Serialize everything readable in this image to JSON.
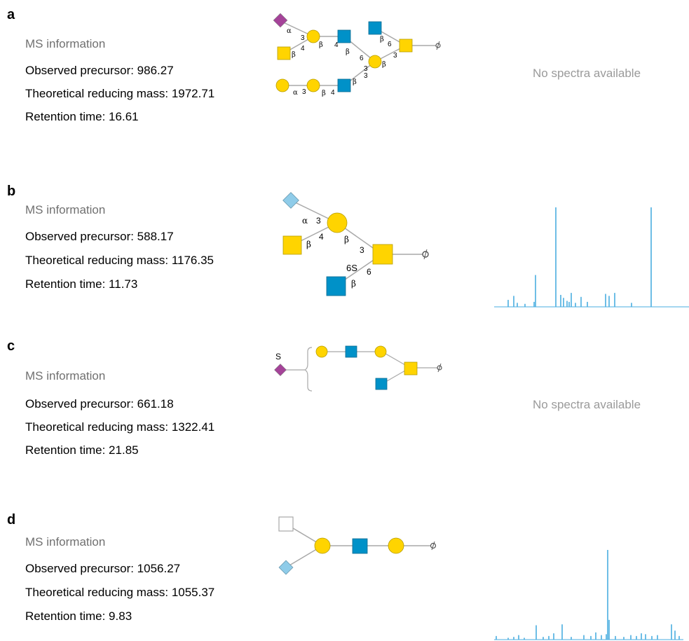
{
  "panels": [
    {
      "letter": "a",
      "ms_header": "MS information",
      "observed_precursor": "Observed precursor: 986.27",
      "theoretical_mass": "Theoretical reducing mass: 1972.71",
      "retention_time": "Retention time: 16.61",
      "spectrum_status": "No spectra available"
    },
    {
      "letter": "b",
      "ms_header": "MS information",
      "observed_precursor": "Observed precursor: 588.17",
      "theoretical_mass": "Theoretical reducing mass: 1176.35",
      "retention_time": "Retention time: 11.73",
      "glycan_label": "6S",
      "spectrum_peaks": [
        0.07,
        0.11,
        0.04,
        0.03,
        0.05,
        0.32,
        1.0,
        0.12,
        0.09,
        0.06,
        0.05,
        0.14,
        0.04,
        0.1,
        0.05,
        0.13,
        0.11,
        0.14,
        0.04,
        1.0
      ]
    },
    {
      "letter": "c",
      "ms_header": "MS information",
      "observed_precursor": "Observed precursor: 661.18",
      "theoretical_mass": "Theoretical reducing mass: 1322.41",
      "retention_time": "Retention time: 21.85",
      "glycan_label": "S",
      "spectrum_status": "No spectra available"
    },
    {
      "letter": "d",
      "ms_header": "MS information",
      "observed_precursor": "Observed precursor: 1056.27",
      "theoretical_mass": "Theoretical reducing mass: 1055.37",
      "retention_time": "Retention time: 9.83",
      "spectrum_peaks": [
        0.04,
        0.02,
        0.03,
        0.05,
        0.02,
        0.16,
        0.03,
        0.04,
        0.07,
        0.17,
        0.03,
        0.05,
        0.04,
        0.08,
        0.05,
        0.06,
        1.0,
        0.22,
        0.04,
        0.03,
        0.05,
        0.04,
        0.07,
        0.06,
        0.04,
        0.05,
        0.17,
        0.1,
        0.04
      ]
    }
  ],
  "colors": {
    "galactose": "#ffd400",
    "glcnac": "#0091c8",
    "neu5ac": "#a54399",
    "neu5gc": "#8fcce9",
    "line": "#a8a8a8",
    "spectrum": "#4aaee0",
    "gray_text": "#9a9a9a"
  }
}
